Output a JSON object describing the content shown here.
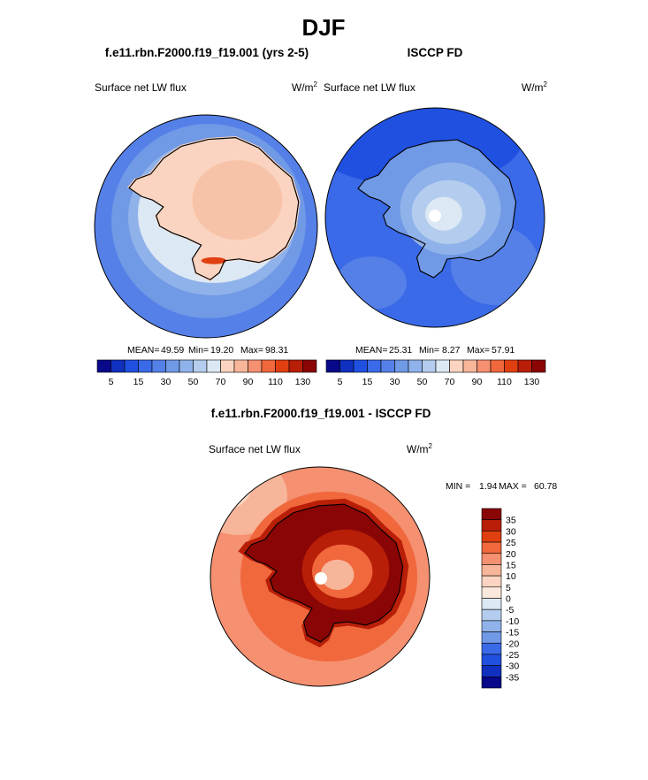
{
  "page": {
    "season_title": "DJF"
  },
  "chart_data": [
    {
      "type": "heatmap",
      "projection": "south-polar-stereographic",
      "case_title": "f.e11.rbn.F2000.f19_f19.001 (yrs 2-5)",
      "variable": "Surface net LW flux",
      "units_base": "W/m",
      "units_exp": "2",
      "stats": {
        "mean_label": "MEAN=",
        "mean": "49.59",
        "min_label": "Min=",
        "min": "19.20",
        "max_label": "Max=",
        "max": "98.31"
      },
      "colorbar": {
        "orientation": "horizontal",
        "levels": [
          5,
          10,
          15,
          20,
          30,
          40,
          50,
          60,
          70,
          80,
          90,
          100,
          110,
          120,
          130
        ],
        "tick_labels": [
          "5",
          "15",
          "30",
          "50",
          "70",
          "90",
          "110",
          "130"
        ],
        "colors": [
          "#08088a",
          "#1030c0",
          "#2050e0",
          "#3a6ae8",
          "#5580e8",
          "#7099e6",
          "#90b2ea",
          "#b4cdee",
          "#dce8f3",
          "#fad4c0",
          "#f7b59a",
          "#f59070",
          "#f0683c",
          "#e04010",
          "#b81e08",
          "#8a0505"
        ]
      },
      "dominant_field": {
        "antarctic_interior": 75,
        "southern_ocean": 28,
        "coastal_min": 19.2,
        "peak_near_ross_sea": 98.31
      }
    },
    {
      "type": "heatmap",
      "projection": "south-polar-stereographic",
      "case_title": "ISCCP FD",
      "variable": "Surface net LW flux",
      "units_base": "W/m",
      "units_exp": "2",
      "stats": {
        "mean_label": "MEAN=",
        "mean": "25.31",
        "min_label": "Min=",
        "min": "8.27",
        "max_label": "Max=",
        "max": "57.91"
      },
      "colorbar": {
        "orientation": "horizontal",
        "levels": [
          5,
          10,
          15,
          20,
          30,
          40,
          50,
          60,
          70,
          80,
          90,
          100,
          110,
          120,
          130
        ],
        "tick_labels": [
          "5",
          "15",
          "30",
          "50",
          "70",
          "90",
          "110",
          "130"
        ],
        "colors": [
          "#08088a",
          "#1030c0",
          "#2050e0",
          "#3a6ae8",
          "#5580e8",
          "#7099e6",
          "#90b2ea",
          "#b4cdee",
          "#dce8f3",
          "#fad4c0",
          "#f7b59a",
          "#f59070",
          "#f0683c",
          "#e04010",
          "#b81e08",
          "#8a0505"
        ]
      },
      "dominant_field": {
        "antarctic_interior": 45,
        "southern_ocean": 20,
        "missing_pole": true
      }
    },
    {
      "type": "heatmap",
      "projection": "south-polar-stereographic",
      "case_title": "f.e11.rbn.F2000.f19_f19.001 - ISCCP FD",
      "variable": "Surface net LW flux",
      "units_base": "W/m",
      "units_exp": "2",
      "stats": {
        "min_label": "MIN =",
        "min": "1.94",
        "max_label": "MAX =",
        "max": "60.78"
      },
      "colorbar": {
        "orientation": "vertical",
        "tick_labels": [
          "35",
          "30",
          "25",
          "20",
          "15",
          "10",
          "5",
          "0",
          "-5",
          "-10",
          "-15",
          "-20",
          "-25",
          "-30",
          "-35"
        ],
        "colors": [
          "#8a0505",
          "#b81e08",
          "#e04010",
          "#f0683c",
          "#f59070",
          "#f7b59a",
          "#fad4c0",
          "#fbe8dc",
          "#dce8f3",
          "#b4cdee",
          "#90b2ea",
          "#7099e6",
          "#3a6ae8",
          "#2050e0",
          "#1030c0",
          "#08088a"
        ]
      },
      "dominant_field": {
        "antarctic_interior": 35,
        "southern_ocean": 15,
        "missing_pole": true
      }
    }
  ]
}
